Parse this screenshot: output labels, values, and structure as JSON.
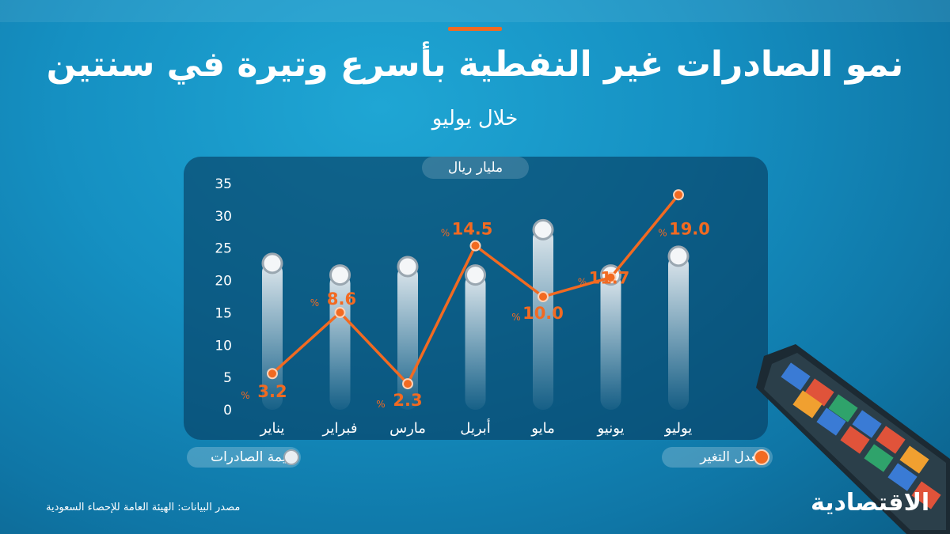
{
  "title": "نمو الصادرات غير النفطية بأسرع وتيرة في سنتين",
  "subtitle": "خلال يوليو",
  "unit_label": "مليار ريال",
  "legend": {
    "bars_label": "قيمة الصادرات",
    "line_label": "معدل التغير"
  },
  "source": "مصدر البيانات: الهيئة العامة للإحصاء السعودية",
  "logo_text": "الاقتصادية",
  "colors": {
    "accent": "#f26a21",
    "bar": "#e9eef2",
    "background": "#1590c2"
  },
  "chart_data": {
    "type": "bar",
    "categories": [
      "يناير",
      "فبراير",
      "مارس",
      "أبريل",
      "مايو",
      "يونيو",
      "يوليو"
    ],
    "ylim": [
      0,
      35
    ],
    "y_ticks": [
      0,
      5,
      10,
      15,
      20,
      25,
      30,
      35
    ],
    "series": [
      {
        "name": "قيمة الصادرات",
        "type": "bar",
        "values": [
          22.9,
          21.1,
          22.4,
          21.1,
          28.1,
          21.1,
          24.0
        ]
      },
      {
        "name": "معدل التغير",
        "type": "line",
        "values": [
          3.2,
          8.6,
          2.3,
          14.5,
          10.0,
          11.7,
          19.0
        ],
        "labels": [
          "3.2",
          "8.6",
          "2.3",
          "14.5",
          "10.0",
          "11.7",
          "19.0"
        ],
        "label_unit": "%"
      }
    ]
  }
}
